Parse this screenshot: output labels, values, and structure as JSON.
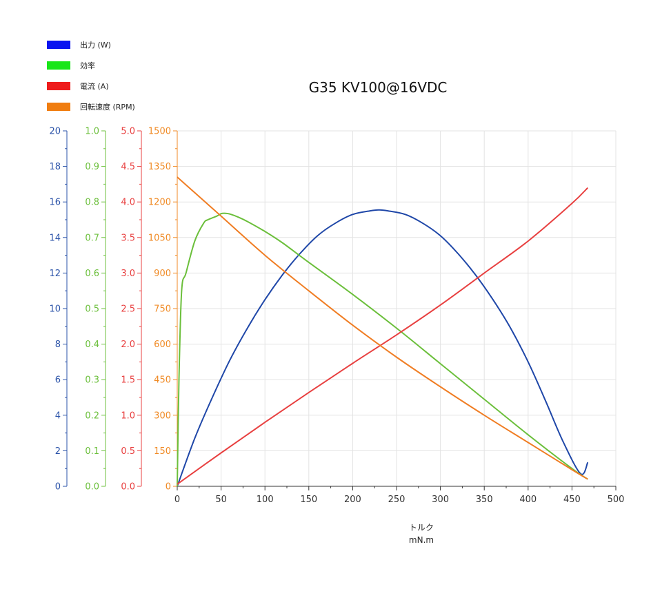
{
  "chart_data": {
    "type": "line",
    "title": "G35 KV100@16VDC",
    "xlabel": "トルク",
    "xunit": "mN.m",
    "xlim": [
      0,
      500
    ],
    "x_ticks": [
      "0",
      "50",
      "100",
      "150",
      "200",
      "250",
      "300",
      "350",
      "400",
      "450",
      "500"
    ],
    "grid": true,
    "legend_position": "top-left",
    "axes": [
      {
        "id": "power",
        "color": "#2a52a8",
        "ylim": [
          0,
          20
        ],
        "ticks": [
          "0",
          "2",
          "4",
          "6",
          "8",
          "10",
          "12",
          "14",
          "16",
          "18",
          "20"
        ]
      },
      {
        "id": "eff",
        "color": "#6bbf3b",
        "ylim": [
          0,
          1
        ],
        "ticks": [
          "0.0",
          "0.1",
          "0.2",
          "0.3",
          "0.4",
          "0.5",
          "0.6",
          "0.7",
          "0.8",
          "0.9",
          "1.0"
        ]
      },
      {
        "id": "current",
        "color": "#e84040",
        "ylim": [
          0,
          5
        ],
        "ticks": [
          "0.0",
          "0.5",
          "1.0",
          "1.5",
          "2.0",
          "2.5",
          "3.0",
          "3.5",
          "4.0",
          "4.5",
          "5.0"
        ]
      },
      {
        "id": "rpm",
        "color": "#f08a24",
        "ylim": [
          0,
          1500
        ],
        "ticks": [
          "0",
          "150",
          "300",
          "450",
          "600",
          "750",
          "900",
          "1050",
          "1200",
          "1350",
          "1500"
        ]
      }
    ],
    "series": [
      {
        "name": "出力 (W)",
        "axis": "power",
        "color": "#1f47a8",
        "legend_color": "#0a14f0",
        "x": [
          0,
          20,
          40,
          60,
          80,
          100,
          120,
          140,
          160,
          180,
          200,
          220,
          230,
          240,
          260,
          280,
          300,
          320,
          340,
          360,
          380,
          400,
          420,
          440,
          460,
          468
        ],
        "y": [
          0,
          2.7,
          5.0,
          7.1,
          8.9,
          10.5,
          11.9,
          13.1,
          14.1,
          14.8,
          15.3,
          15.5,
          15.55,
          15.5,
          15.3,
          14.8,
          14.1,
          13.1,
          11.9,
          10.5,
          8.9,
          7.0,
          4.8,
          2.5,
          0.7,
          1.35
        ]
      },
      {
        "name": "効率",
        "axis": "eff",
        "color": "#6bbf3b",
        "legend_color": "#19e619",
        "x": [
          0,
          2,
          5,
          10,
          20,
          30,
          35,
          45,
          50,
          55,
          60,
          70,
          80,
          100,
          120,
          150,
          200,
          250,
          300,
          350,
          400,
          450,
          468
        ],
        "y": [
          0,
          0.3,
          0.55,
          0.6,
          0.69,
          0.74,
          0.75,
          0.76,
          0.767,
          0.768,
          0.766,
          0.757,
          0.745,
          0.717,
          0.685,
          0.63,
          0.54,
          0.445,
          0.345,
          0.245,
          0.145,
          0.05,
          0.02
        ]
      },
      {
        "name": "電流 (A)",
        "axis": "current",
        "color": "#e84040",
        "legend_color": "#ee1c1c",
        "x": [
          0,
          50,
          100,
          150,
          200,
          250,
          300,
          350,
          400,
          450,
          468
        ],
        "y": [
          0.03,
          0.47,
          0.9,
          1.32,
          1.73,
          2.13,
          2.55,
          3.0,
          3.45,
          3.98,
          4.2
        ]
      },
      {
        "name": "回転速度 (RPM)",
        "axis": "rpm",
        "color": "#f07d23",
        "legend_color": "#f07d10",
        "x": [
          0,
          50,
          100,
          150,
          200,
          250,
          300,
          350,
          400,
          450,
          468
        ],
        "y": [
          1305,
          1140,
          975,
          825,
          680,
          545,
          420,
          300,
          185,
          70,
          30
        ]
      }
    ]
  }
}
